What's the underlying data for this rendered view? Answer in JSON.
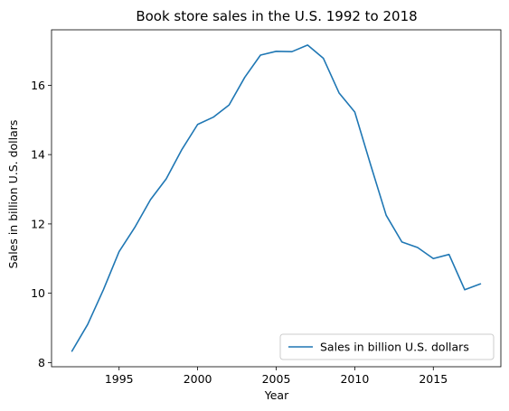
{
  "chart_data": {
    "type": "line",
    "title": "Book store sales in the U.S. 1992 to 2018",
    "xlabel": "Year",
    "ylabel": "Sales in billion U.S. dollars",
    "xlim": [
      1990.7,
      2019.3
    ],
    "ylim": [
      7.88,
      17.6
    ],
    "xticks": [
      1995,
      2000,
      2005,
      2010,
      2015
    ],
    "yticks": [
      8,
      10,
      12,
      14,
      16
    ],
    "grid": false,
    "legend_position": "lower-right",
    "series": [
      {
        "name": "Sales in billion U.S. dollars",
        "color": "#1f77b4",
        "x": [
          1992,
          1993,
          1994,
          1995,
          1996,
          1997,
          1998,
          1999,
          2000,
          2001,
          2002,
          2003,
          2004,
          2005,
          2006,
          2007,
          2008,
          2009,
          2010,
          2011,
          2012,
          2013,
          2014,
          2015,
          2016,
          2017,
          2018
        ],
        "y": [
          8.33,
          9.1,
          10.1,
          11.2,
          11.9,
          12.7,
          13.3,
          14.15,
          14.87,
          15.08,
          15.43,
          16.23,
          16.87,
          16.98,
          16.97,
          17.16,
          16.78,
          15.78,
          15.23,
          13.72,
          12.25,
          11.48,
          11.32,
          11.0,
          11.12,
          10.1,
          10.27
        ]
      }
    ]
  }
}
